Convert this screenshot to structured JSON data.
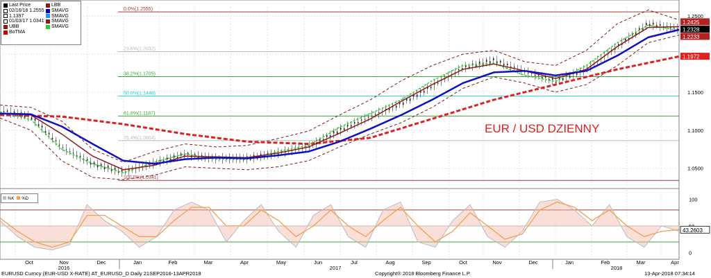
{
  "chart_data": {
    "type": "line",
    "title": "EUR / USD DZIENNY",
    "instrument": "EURUSD Curncy (EUR-USD X-RATE) AT_EURUSD_D Daily 21SEP2016-13APR2018",
    "copyright": "Copyright® 2018 Bloomberg Finance L.P.",
    "timestamp": "13-Apr-2018 07:34:14",
    "legend": [
      {
        "label": "Last Price",
        "color": "#000000"
      },
      {
        "label": "02/16/18 1.2555",
        "color": "#000000"
      },
      {
        "label": "1.1397",
        "color": "#000000"
      },
      {
        "label": "01/03/17 1.0341",
        "color": "#000000"
      },
      {
        "label": "UBB",
        "color": "#8b1a1a"
      },
      {
        "label": "BoTMA",
        "color": "#cc0000"
      },
      {
        "label": "LBB",
        "color": "#8b1a1a"
      },
      {
        "label": "SMAVG",
        "color": "#0000cc"
      },
      {
        "label": "SMAVG",
        "color": "#1e90ff"
      },
      {
        "label": "SMAVG",
        "color": "#8b1a1a"
      },
      {
        "label": "SMAVG",
        "color": "#33cc33"
      }
    ],
    "x_months": [
      "Oct",
      "Nov",
      "Dec",
      "Jan",
      "Feb",
      "Mar",
      "Apr",
      "May",
      "Jun",
      "Jul",
      "Aug",
      "Sep",
      "Oct",
      "Nov",
      "Dec",
      "Jan",
      "Feb",
      "Mar",
      "Apr"
    ],
    "x_years": [
      "2016",
      "2017",
      "2018"
    ],
    "yticks": [
      "1.2500",
      "1.2000",
      "1.1500",
      "1.1000",
      "1.0500"
    ],
    "ylim": [
      1.027,
      1.262
    ],
    "fib_levels": [
      {
        "label": "0.0%(1.2555)",
        "value": 1.2555,
        "color": "#a33c3c"
      },
      {
        "label": "23.6%(1.2032)",
        "value": 1.2032,
        "color": "#bbbbbb"
      },
      {
        "label": "38.2%(1.1705)",
        "value": 1.1705,
        "color": "#33aa33"
      },
      {
        "label": "50.0%(1.1448)",
        "value": 1.1448,
        "color": "#22cccc"
      },
      {
        "label": "61.8%(1.1187)",
        "value": 1.1187,
        "color": "#33aa33"
      },
      {
        "label": "76.4%(1.0864)",
        "value": 1.0864,
        "color": "#bbbbbb"
      },
      {
        "label": "100.0%(1.0341)",
        "value": 1.0341,
        "color": "#a33c3c"
      }
    ],
    "price_labels": [
      {
        "text": "1.2425",
        "value": 1.2425,
        "bg": "#b22222",
        "fg": "#ffffff"
      },
      {
        "text": "1.2328",
        "value": 1.2328,
        "bg": "#000000",
        "fg": "#ffffff"
      },
      {
        "text": "1.2233",
        "value": 1.2233,
        "bg": "#b22222",
        "fg": "#ffffff"
      },
      {
        "text": "1.1972",
        "value": 1.1972,
        "bg": "#e02020",
        "fg": "#ffffff"
      }
    ],
    "price": {
      "x": [
        0,
        4,
        8,
        12,
        16,
        20,
        24,
        28,
        32,
        36,
        40,
        44,
        48,
        52,
        56,
        60,
        64,
        68,
        72,
        76,
        80,
        84,
        88
      ],
      "y": [
        1.126,
        1.118,
        1.078,
        1.056,
        1.045,
        1.057,
        1.068,
        1.063,
        1.063,
        1.07,
        1.078,
        1.1,
        1.118,
        1.135,
        1.158,
        1.182,
        1.192,
        1.177,
        1.165,
        1.18,
        1.21,
        1.24,
        1.233
      ]
    },
    "ubb": {
      "x": [
        0,
        4,
        8,
        12,
        16,
        20,
        24,
        28,
        32,
        36,
        40,
        44,
        48,
        52,
        56,
        60,
        64,
        68,
        72,
        76,
        80,
        84,
        88
      ],
      "y": [
        1.133,
        1.13,
        1.112,
        1.075,
        1.058,
        1.072,
        1.082,
        1.078,
        1.08,
        1.089,
        1.099,
        1.12,
        1.14,
        1.165,
        1.185,
        1.2,
        1.205,
        1.19,
        1.185,
        1.205,
        1.24,
        1.258,
        1.245
      ]
    },
    "lbb": {
      "x": [
        0,
        4,
        8,
        12,
        16,
        20,
        24,
        28,
        32,
        36,
        40,
        44,
        48,
        52,
        56,
        60,
        64,
        68,
        72,
        76,
        80,
        84,
        88
      ],
      "y": [
        1.116,
        1.1,
        1.06,
        1.038,
        1.035,
        1.041,
        1.052,
        1.05,
        1.048,
        1.052,
        1.06,
        1.078,
        1.095,
        1.11,
        1.13,
        1.155,
        1.17,
        1.162,
        1.15,
        1.16,
        1.185,
        1.215,
        1.225
      ]
    },
    "sma_red": {
      "x": [
        0,
        4,
        8,
        12,
        16,
        20,
        24,
        28,
        32,
        36,
        40,
        44,
        48,
        52,
        56,
        60,
        64,
        68,
        72,
        76,
        80,
        84,
        88
      ],
      "y": [
        1.122,
        1.12,
        1.095,
        1.066,
        1.048,
        1.054,
        1.066,
        1.065,
        1.064,
        1.07,
        1.078,
        1.096,
        1.115,
        1.138,
        1.16,
        1.18,
        1.187,
        1.178,
        1.168,
        1.18,
        1.21,
        1.235,
        1.236
      ]
    },
    "sma_blue": {
      "x": [
        0,
        4,
        8,
        12,
        16,
        20,
        24,
        28,
        32,
        36,
        40,
        44,
        48,
        52,
        56,
        60,
        64,
        68,
        72,
        76,
        80,
        84,
        88
      ],
      "y": [
        1.122,
        1.121,
        1.105,
        1.082,
        1.06,
        1.056,
        1.062,
        1.064,
        1.063,
        1.067,
        1.072,
        1.085,
        1.102,
        1.12,
        1.14,
        1.162,
        1.176,
        1.178,
        1.172,
        1.178,
        1.198,
        1.222,
        1.232
      ]
    },
    "sma_green": {
      "x": [
        0,
        4,
        8,
        12,
        16,
        20,
        24,
        28,
        32,
        36,
        40,
        44,
        48,
        52,
        56,
        60,
        64,
        68,
        72,
        76,
        80,
        84,
        88
      ],
      "y": [
        1.124,
        1.114,
        1.075,
        1.056,
        1.044,
        1.058,
        1.069,
        1.062,
        1.062,
        1.072,
        1.08,
        1.104,
        1.122,
        1.14,
        1.165,
        1.185,
        1.188,
        1.172,
        1.164,
        1.185,
        1.215,
        1.238,
        1.231
      ]
    },
    "sma_long": {
      "x": [
        0,
        8,
        16,
        24,
        32,
        40,
        48,
        56,
        64,
        72,
        80,
        88
      ],
      "y": [
        1.12,
        1.118,
        1.108,
        1.095,
        1.085,
        1.082,
        1.09,
        1.115,
        1.14,
        1.16,
        1.18,
        1.197
      ]
    },
    "oscillator": {
      "yticks": [
        "100",
        "50",
        "0"
      ],
      "ylim": [
        -10,
        115
      ],
      "value_label": "43.2603",
      "legend": [
        "%K",
        "%D"
      ],
      "k": [
        60,
        30,
        10,
        5,
        15,
        90,
        60,
        40,
        10,
        30,
        80,
        95,
        80,
        20,
        60,
        90,
        40,
        10,
        70,
        90,
        30,
        10,
        80,
        95,
        20,
        10,
        60,
        90,
        30,
        10,
        40,
        95,
        100,
        80,
        50,
        90,
        30,
        10,
        50,
        40
      ],
      "d": [
        65,
        40,
        20,
        10,
        20,
        70,
        70,
        50,
        30,
        30,
        60,
        85,
        85,
        50,
        50,
        80,
        60,
        30,
        50,
        80,
        50,
        30,
        60,
        85,
        50,
        20,
        40,
        75,
        50,
        25,
        35,
        80,
        95,
        85,
        60,
        80,
        50,
        30,
        40,
        43
      ]
    }
  }
}
